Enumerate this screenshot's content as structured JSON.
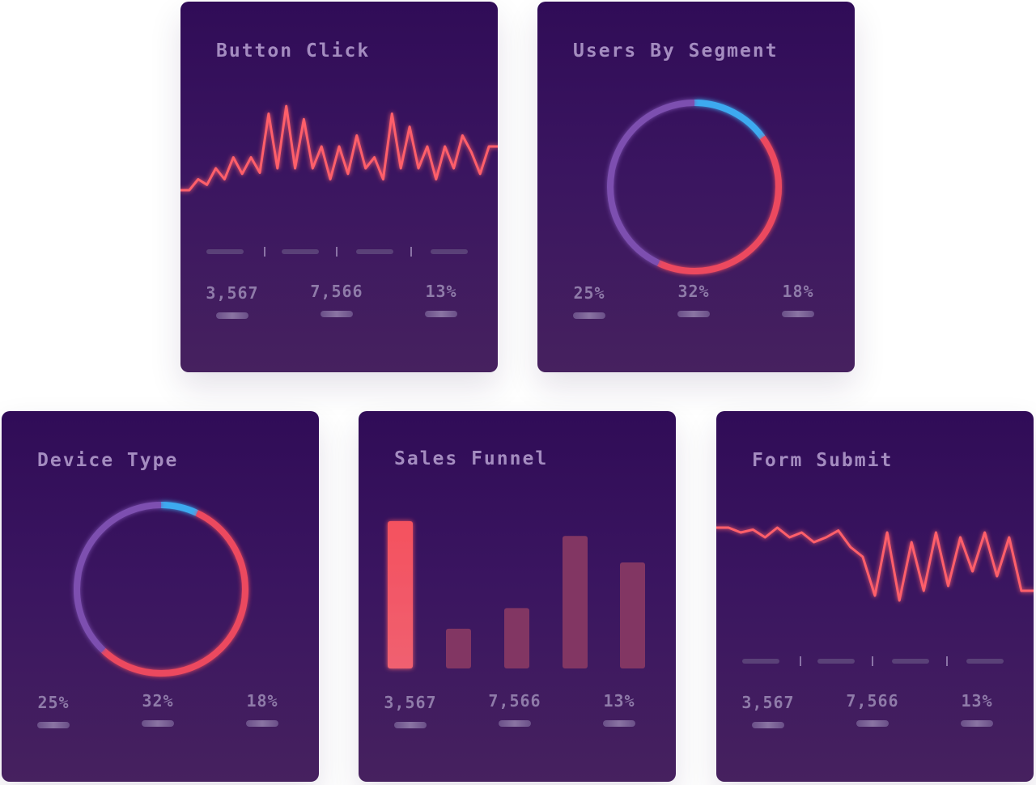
{
  "cards": [
    {
      "id": "button-click",
      "title": "Button Click",
      "stats": [
        "3,567",
        "7,566",
        "13%"
      ]
    },
    {
      "id": "users-by-segment",
      "title": "Users By Segment",
      "stats": [
        "25%",
        "32%",
        "18%"
      ]
    },
    {
      "id": "device-type",
      "title": "Device Type",
      "stats": [
        "25%",
        "32%",
        "18%"
      ]
    },
    {
      "id": "sales-funnel",
      "title": "Sales Funnel",
      "stats": [
        "3,567",
        "7,566",
        "13%"
      ]
    },
    {
      "id": "form-submit",
      "title": "Form Submit",
      "stats": [
        "3,567",
        "7,566",
        "13%"
      ]
    }
  ],
  "colors": {
    "line": "#ff5e6a",
    "blue": "#3eaaf0",
    "purple": "#7d50b0",
    "red": "#ec4a5e",
    "bar_strong": "#f0525f",
    "bar_muted": "#823663"
  },
  "chart_data": [
    {
      "type": "line",
      "title": "Button Click",
      "series": [
        {
          "values": [
            2,
            2,
            3,
            2.5,
            4,
            3,
            5,
            3.5,
            5,
            3.6,
            9,
            4,
            9.7,
            4,
            8.5,
            4,
            6,
            3,
            6,
            3.5,
            7,
            4,
            5,
            3,
            9,
            4,
            7.8,
            4,
            6,
            3,
            6,
            4,
            7,
            5.5,
            3.5,
            6,
            6
          ]
        }
      ],
      "ylim": [
        0,
        10
      ]
    },
    {
      "type": "pie",
      "title": "Users By Segment",
      "slices": [
        {
          "color": "blue",
          "value": 15
        },
        {
          "color": "red",
          "value": 42
        },
        {
          "color": "purple",
          "value": 43
        }
      ]
    },
    {
      "type": "pie",
      "title": "Device Type",
      "slices": [
        {
          "color": "blue",
          "value": 7
        },
        {
          "color": "red",
          "value": 55
        },
        {
          "color": "purple",
          "value": 38
        }
      ]
    },
    {
      "type": "bar",
      "title": "Sales Funnel",
      "values": [
        100,
        27,
        41,
        90,
        72
      ],
      "ylim": [
        0,
        100
      ]
    },
    {
      "type": "line",
      "title": "Form Submit",
      "series": [
        {
          "values": [
            8,
            8,
            7.5,
            7.8,
            7,
            8,
            7,
            7.5,
            6.5,
            7,
            7.7,
            6,
            5,
            1,
            7.5,
            0.5,
            6.5,
            1.5,
            7.5,
            2,
            7,
            3.5,
            7.5,
            3,
            7,
            1.5,
            1.5
          ]
        }
      ],
      "ylim": [
        0,
        10
      ]
    }
  ]
}
